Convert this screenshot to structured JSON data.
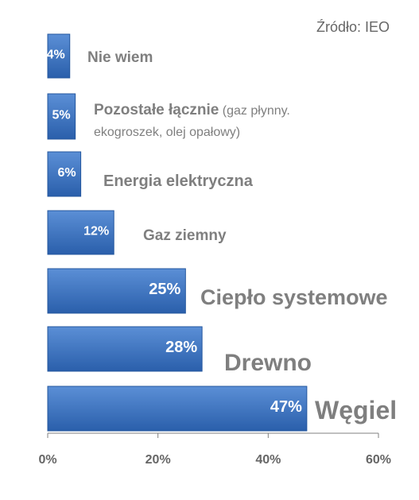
{
  "source_text": "Źródło: IEO",
  "chart_data": {
    "type": "bar",
    "orientation": "horizontal",
    "categories": [
      "Nie wiem",
      "Pozostałe łącznie (gaz płynny. ekogroszek, olej opałowy)",
      "Energia elektryczna",
      "Gaz ziemny",
      "Ciepło systemowe",
      "Drewno",
      "Węgiel"
    ],
    "category_labels": [
      {
        "main": "Nie wiem",
        "note": ""
      },
      {
        "main": "Pozostałe łącznie",
        "note": " (gaz płynny.",
        "note2": "ekogroszek, olej opałowy)"
      },
      {
        "main": "Energia elektryczna",
        "note": ""
      },
      {
        "main": "Gaz ziemny",
        "note": ""
      },
      {
        "main": "Ciepło systemowe",
        "note": ""
      },
      {
        "main": "Drewno",
        "note": ""
      },
      {
        "main": "Węgiel",
        "note": ""
      }
    ],
    "values": [
      4,
      5,
      6,
      12,
      25,
      28,
      47
    ],
    "value_labels": [
      "4%",
      "5%",
      "6%",
      "12%",
      "25%",
      "28%",
      "47%"
    ],
    "xlim": [
      0,
      60
    ],
    "x_ticks": [
      "0%",
      "20%",
      "40%",
      "60%"
    ],
    "grid": false,
    "bar_color": "#2f67b6",
    "bar_color_light": "#5b8fd6",
    "label_color": "#7f7f7f"
  }
}
